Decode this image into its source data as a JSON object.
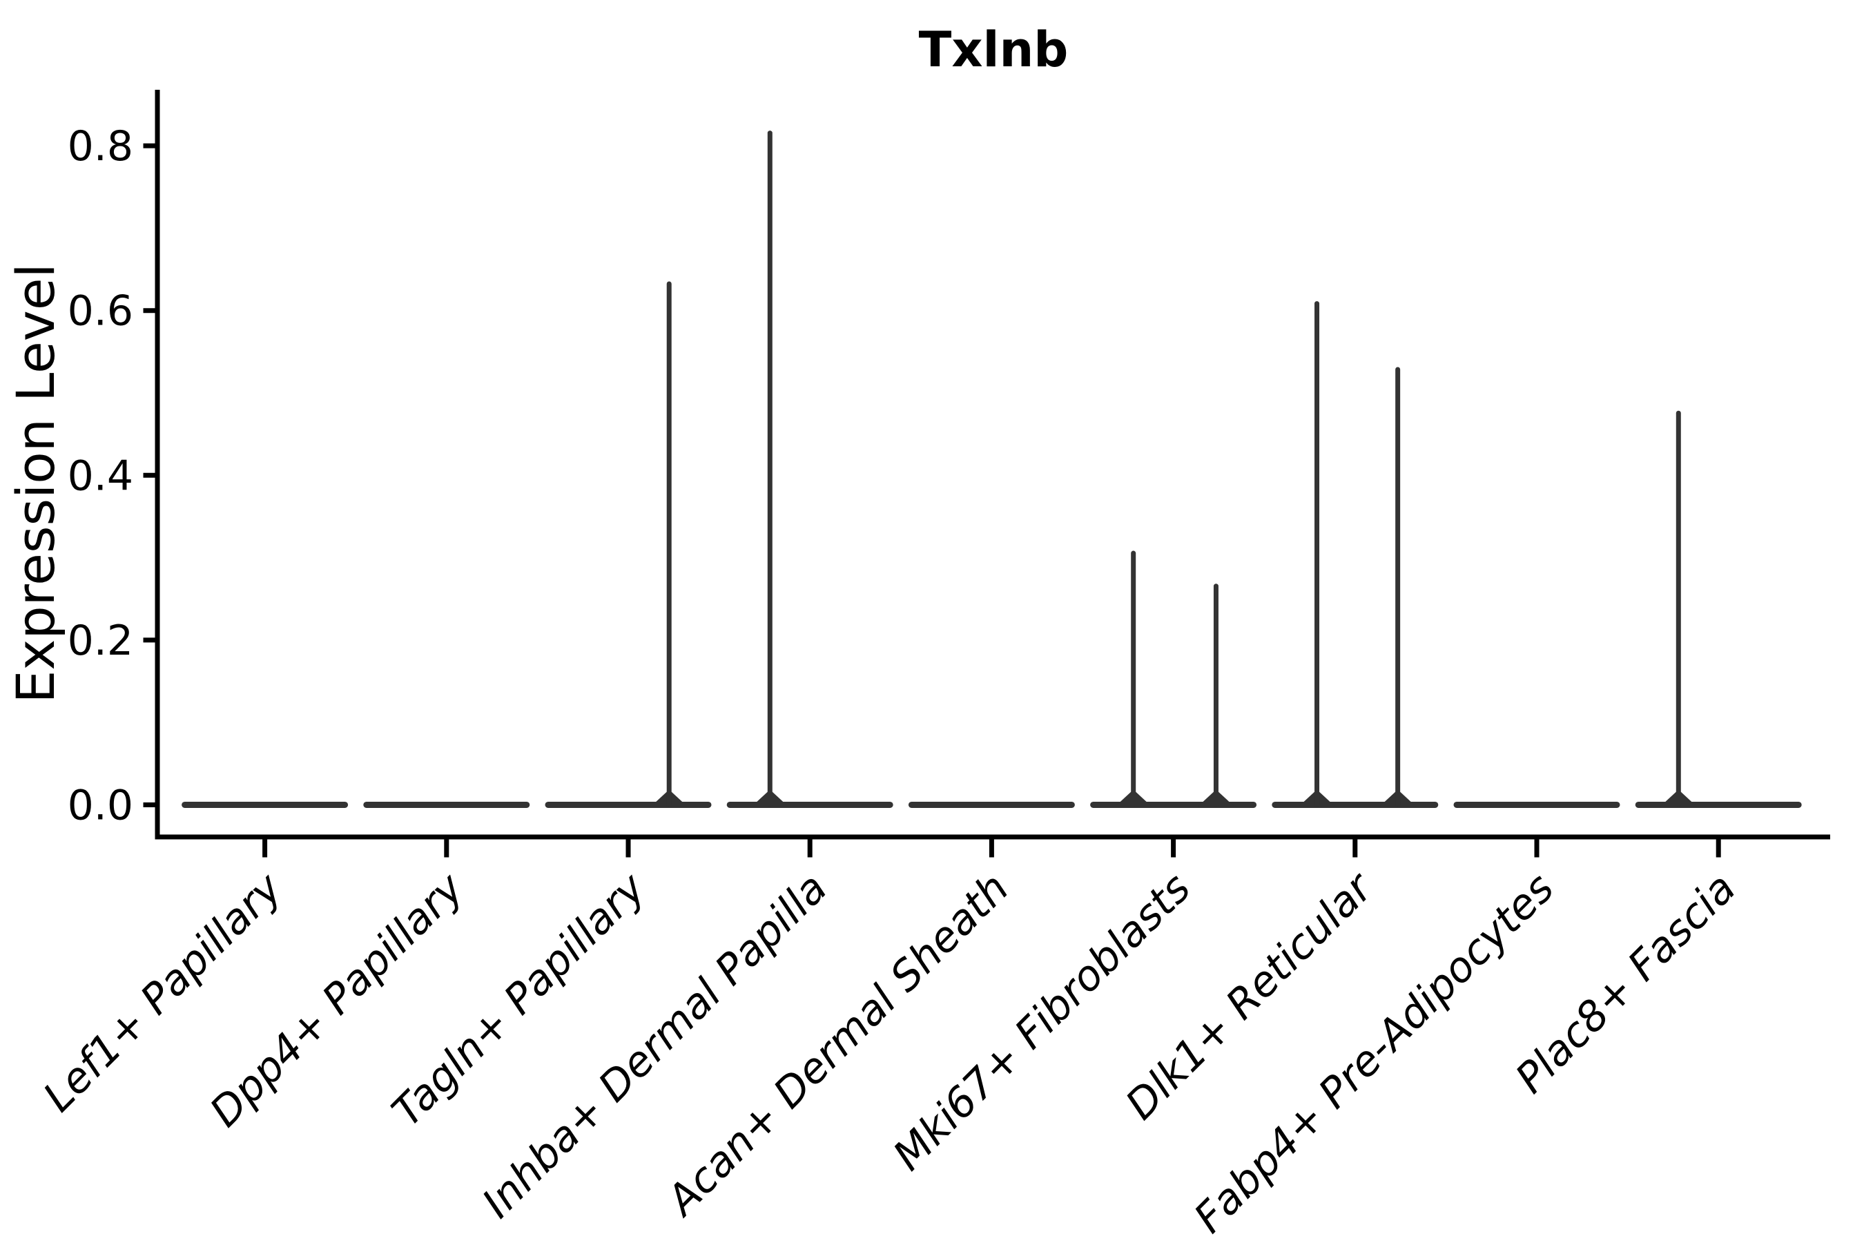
{
  "figure": {
    "background": "#ffffff"
  },
  "chart_data": {
    "type": "violin",
    "title": "Txlnb",
    "xlabel": "",
    "ylabel": "Expression Level",
    "categories": [
      "Lef1+ Papillary",
      "Dpp4+ Papillary",
      "Tagln+ Papillary",
      "Inhba+ Dermal Papilla",
      "Acan+ Dermal Sheath",
      "Mki67+ Fibroblasts",
      "Dlk1+ Reticular",
      "Fabp4+ Pre-Adipocytes",
      "Plac8+ Fascia"
    ],
    "yticks": [
      0.0,
      0.2,
      0.4,
      0.6,
      0.8
    ],
    "ylim": [
      -0.039,
      0.868
    ],
    "grid": false,
    "legend": null,
    "colors": {
      "violin": "#333333",
      "axis": "#000000",
      "text": "#000000"
    },
    "violins": [
      {
        "category": "Lef1+ Papillary",
        "body_value": 0,
        "spikes": []
      },
      {
        "category": "Dpp4+ Papillary",
        "body_value": 0,
        "spikes": []
      },
      {
        "category": "Tagln+ Papillary",
        "body_value": 0,
        "spikes": [
          {
            "group": "right",
            "offset_frac": 0.225,
            "max": 0.635
          }
        ]
      },
      {
        "category": "Inhba+ Dermal Papilla",
        "body_value": 0,
        "spikes": [
          {
            "group": "left",
            "offset_frac": -0.22,
            "max": 0.818
          }
        ]
      },
      {
        "category": "Acan+ Dermal Sheath",
        "body_value": 0,
        "spikes": []
      },
      {
        "category": "Mki67+ Fibroblasts",
        "body_value": 0,
        "spikes": [
          {
            "group": "left",
            "offset_frac": -0.22,
            "max": 0.308
          },
          {
            "group": "right",
            "offset_frac": 0.235,
            "max": 0.268
          }
        ]
      },
      {
        "category": "Dlk1+ Reticular",
        "body_value": 0,
        "spikes": [
          {
            "group": "left",
            "offset_frac": -0.21,
            "max": 0.611
          },
          {
            "group": "right",
            "offset_frac": 0.235,
            "max": 0.531
          }
        ]
      },
      {
        "category": "Fabp4+ Pre-Adipocytes",
        "body_value": 0,
        "spikes": []
      },
      {
        "category": "Plac8+ Fascia",
        "body_value": 0,
        "spikes": [
          {
            "group": "left",
            "offset_frac": -0.22,
            "max": 0.478
          }
        ]
      }
    ]
  }
}
